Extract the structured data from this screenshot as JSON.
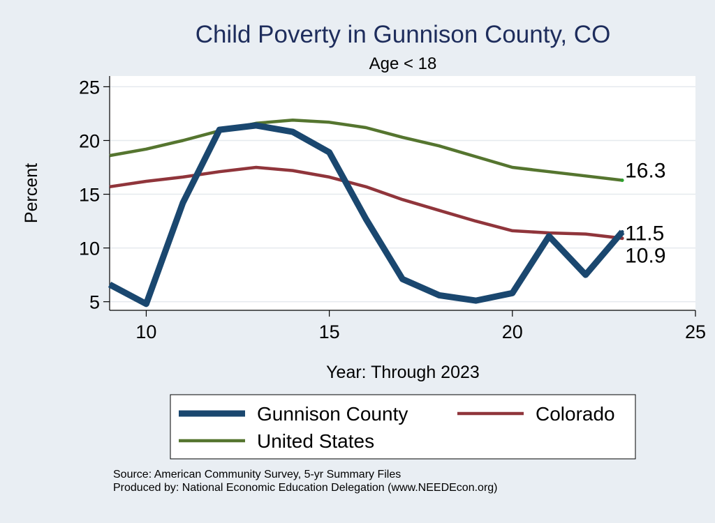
{
  "chart_data": {
    "type": "line",
    "title": "Child Poverty in Gunnison County, CO",
    "subtitle": "Age < 18",
    "xlabel": "Year: Through 2023",
    "ylabel": "Percent",
    "xlim": [
      9,
      25
    ],
    "ylim": [
      4.2,
      26
    ],
    "x_ticks": [
      10,
      15,
      20,
      25
    ],
    "y_ticks": [
      5,
      10,
      15,
      20,
      25
    ],
    "grid": "horizontal",
    "legend_position": "bottom",
    "series": [
      {
        "name": "Gunnison County",
        "color": "#1a476f",
        "x": [
          9,
          10,
          11,
          12,
          13,
          14,
          15,
          16,
          17,
          18,
          19,
          20,
          21,
          22,
          23
        ],
        "values": [
          6.6,
          4.8,
          14.2,
          21.0,
          21.4,
          20.8,
          18.9,
          12.7,
          7.1,
          5.6,
          5.1,
          5.8,
          11.1,
          7.5,
          11.5
        ]
      },
      {
        "name": "Colorado",
        "color": "#90353b",
        "x": [
          9,
          10,
          11,
          12,
          13,
          14,
          15,
          16,
          17,
          18,
          19,
          20,
          21,
          22,
          23
        ],
        "values": [
          15.7,
          16.2,
          16.6,
          17.1,
          17.5,
          17.2,
          16.6,
          15.7,
          14.5,
          13.5,
          12.5,
          11.6,
          11.4,
          11.3,
          10.9
        ]
      },
      {
        "name": "United States",
        "color": "#55752f",
        "x": [
          9,
          10,
          11,
          12,
          13,
          14,
          15,
          16,
          17,
          18,
          19,
          20,
          21,
          22,
          23
        ],
        "values": [
          18.6,
          19.2,
          20.0,
          20.9,
          21.6,
          21.9,
          21.7,
          21.2,
          20.3,
          19.5,
          18.5,
          17.5,
          17.1,
          16.7,
          16.3
        ]
      }
    ],
    "annotations": [
      {
        "text": "16.3",
        "x": 23,
        "y": 16.3
      },
      {
        "text": "11.5",
        "x": 23,
        "y": 11.5
      },
      {
        "text": "10.9",
        "x": 23,
        "y": 10.9
      }
    ]
  },
  "notes": {
    "source": "Source: American Community Survey, 5-yr Summary Files",
    "produced_by": "Produced by: National Economic Education Delegation (www.NEEDEcon.org)"
  }
}
